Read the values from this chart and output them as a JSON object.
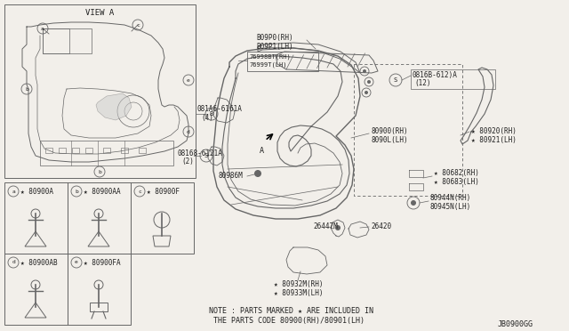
{
  "bg_color": "#f2efea",
  "line_color": "#666666",
  "text_color": "#222222",
  "diagram_id": "JB0900GG",
  "note_line1": "NOTE : PARTS MARKED ★ ARE INCLUDED IN",
  "note_line2": "THE PARTS CODE 80900(RH)/80901(LH)",
  "figsize": [
    6.4,
    3.72
  ],
  "dpi": 100
}
